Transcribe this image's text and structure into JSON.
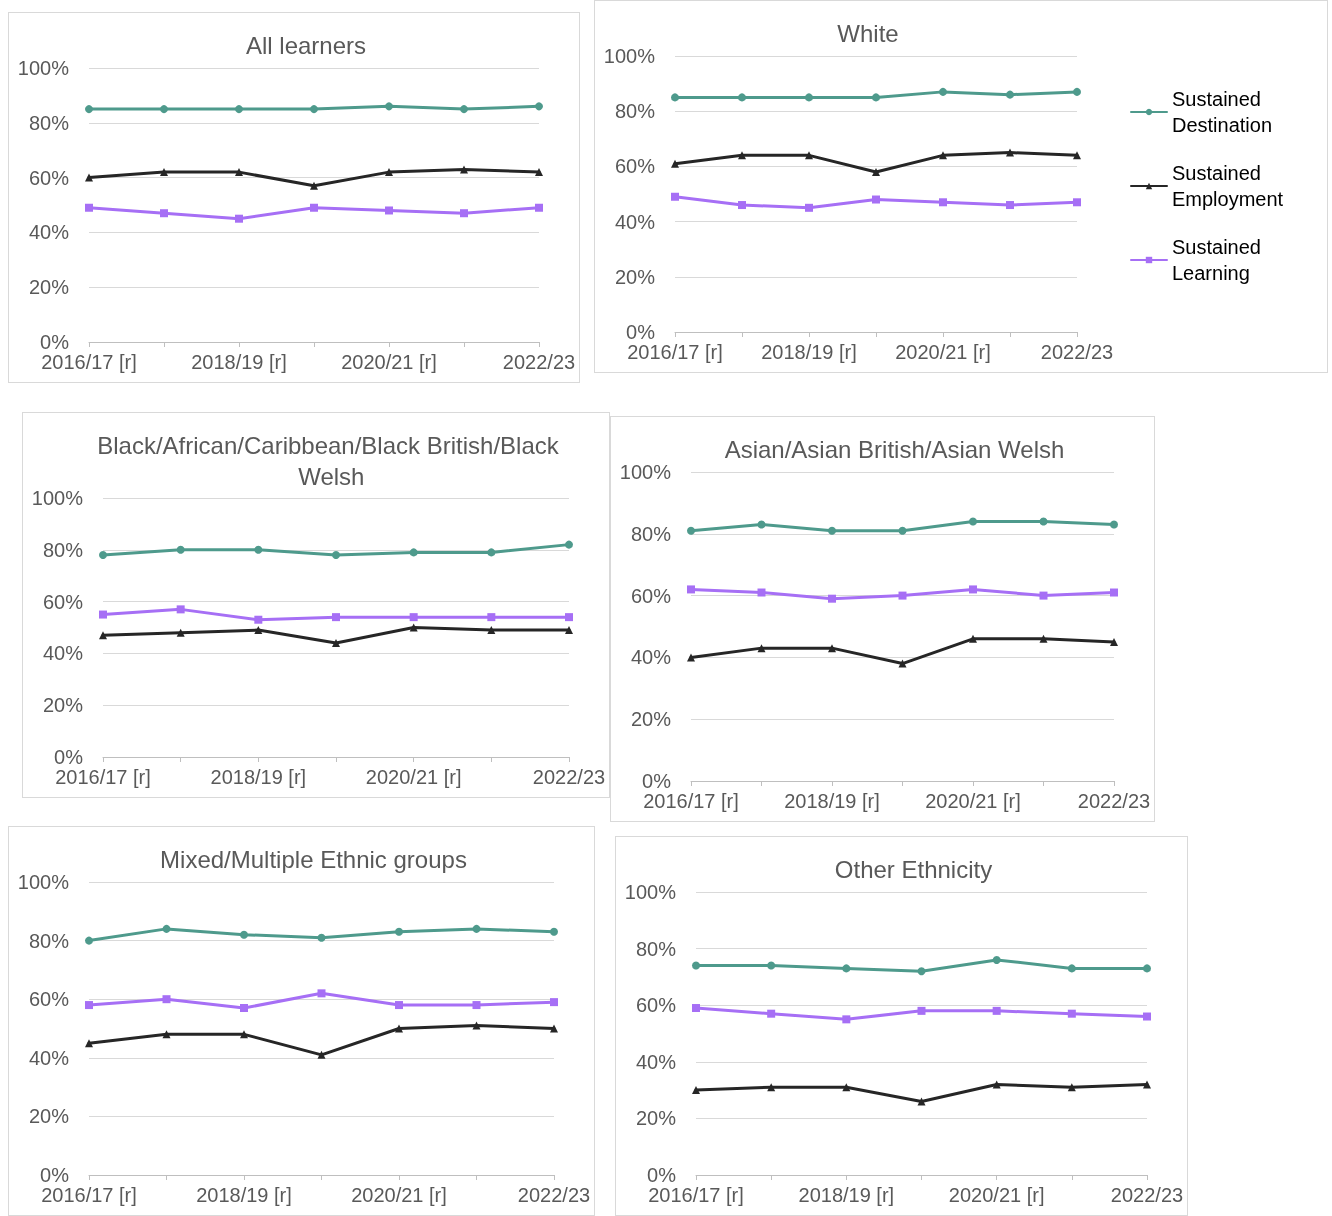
{
  "chart_data": [
    {
      "type": "line",
      "title": "All learners",
      "categories": [
        "2016/17 [r]",
        null,
        "2018/19 [r]",
        null,
        "2020/21 [r]",
        null,
        "2022/23"
      ],
      "ylim": [
        0,
        100
      ],
      "yticks": [
        {
          "value": 0,
          "label": "0%"
        },
        {
          "value": 20,
          "label": "20%"
        },
        {
          "value": 40,
          "label": "40%"
        },
        {
          "value": 60,
          "label": "60%"
        },
        {
          "value": 80,
          "label": "80%"
        },
        {
          "value": 100,
          "label": "100%"
        }
      ],
      "grid": "y",
      "legend": false,
      "series": [
        {
          "color": "#4e9a8c",
          "marker": "circle",
          "values": [
            85,
            85,
            85,
            85,
            86,
            85,
            86
          ]
        },
        {
          "color": "#262626",
          "marker": "triangle",
          "values": [
            60,
            62,
            62,
            57,
            62,
            63,
            62
          ]
        },
        {
          "color": "#a66ff5",
          "marker": "square",
          "values": [
            49,
            47,
            45,
            49,
            48,
            47,
            49
          ]
        }
      ]
    },
    {
      "type": "line",
      "title": "White",
      "categories": [
        "2016/17 [r]",
        null,
        "2018/19 [r]",
        null,
        "2020/21 [r]",
        null,
        "2022/23"
      ],
      "ylim": [
        0,
        100
      ],
      "yticks": [
        {
          "value": 0,
          "label": "0%"
        },
        {
          "value": 20,
          "label": "20%"
        },
        {
          "value": 40,
          "label": "40%"
        },
        {
          "value": 60,
          "label": "60%"
        },
        {
          "value": 80,
          "label": "80%"
        },
        {
          "value": 100,
          "label": "100%"
        }
      ],
      "grid": "y",
      "legend": "right",
      "series": [
        {
          "name": "Sustained Destination",
          "color": "#4e9a8c",
          "marker": "circle",
          "values": [
            85,
            85,
            85,
            85,
            87,
            86,
            87
          ]
        },
        {
          "name": "Sustained Employment",
          "color": "#262626",
          "marker": "triangle",
          "values": [
            61,
            64,
            64,
            58,
            64,
            65,
            64
          ]
        },
        {
          "name": "Sustained Learning",
          "color": "#a66ff5",
          "marker": "square",
          "values": [
            49,
            46,
            45,
            48,
            47,
            46,
            47
          ]
        }
      ]
    },
    {
      "type": "line",
      "title": "Black/African/Caribbean/Black British/Black Welsh",
      "categories": [
        "2016/17 [r]",
        null,
        "2018/19 [r]",
        null,
        "2020/21 [r]",
        null,
        "2022/23"
      ],
      "ylim": [
        0,
        100
      ],
      "yticks": [
        {
          "value": 0,
          "label": "0%"
        },
        {
          "value": 20,
          "label": "20%"
        },
        {
          "value": 40,
          "label": "40%"
        },
        {
          "value": 60,
          "label": "60%"
        },
        {
          "value": 80,
          "label": "80%"
        },
        {
          "value": 100,
          "label": "100%"
        }
      ],
      "grid": "y",
      "legend": false,
      "series": [
        {
          "color": "#4e9a8c",
          "marker": "circle",
          "values": [
            78,
            80,
            80,
            78,
            79,
            79,
            82
          ]
        },
        {
          "color": "#262626",
          "marker": "triangle",
          "values": [
            47,
            48,
            49,
            44,
            50,
            49,
            49
          ]
        },
        {
          "color": "#a66ff5",
          "marker": "square",
          "values": [
            55,
            57,
            53,
            54,
            54,
            54,
            54
          ]
        }
      ]
    },
    {
      "type": "line",
      "title": "Asian/Asian British/Asian Welsh",
      "categories": [
        "2016/17 [r]",
        null,
        "2018/19 [r]",
        null,
        "2020/21 [r]",
        null,
        "2022/23"
      ],
      "ylim": [
        0,
        100
      ],
      "yticks": [
        {
          "value": 0,
          "label": "0%"
        },
        {
          "value": 20,
          "label": "20%"
        },
        {
          "value": 40,
          "label": "40%"
        },
        {
          "value": 60,
          "label": "60%"
        },
        {
          "value": 80,
          "label": "80%"
        },
        {
          "value": 100,
          "label": "100%"
        }
      ],
      "grid": "y",
      "legend": false,
      "series": [
        {
          "color": "#4e9a8c",
          "marker": "circle",
          "values": [
            81,
            83,
            81,
            81,
            84,
            84,
            83
          ]
        },
        {
          "color": "#262626",
          "marker": "triangle",
          "values": [
            40,
            43,
            43,
            38,
            46,
            46,
            45
          ]
        },
        {
          "color": "#a66ff5",
          "marker": "square",
          "values": [
            62,
            61,
            59,
            60,
            62,
            60,
            61
          ]
        }
      ]
    },
    {
      "type": "line",
      "title": "Mixed/Multiple Ethnic groups",
      "categories": [
        "2016/17 [r]",
        null,
        "2018/19 [r]",
        null,
        "2020/21 [r]",
        null,
        "2022/23"
      ],
      "ylim": [
        0,
        100
      ],
      "yticks": [
        {
          "value": 0,
          "label": "0%"
        },
        {
          "value": 20,
          "label": "20%"
        },
        {
          "value": 40,
          "label": "40%"
        },
        {
          "value": 60,
          "label": "60%"
        },
        {
          "value": 80,
          "label": "80%"
        },
        {
          "value": 100,
          "label": "100%"
        }
      ],
      "grid": "y",
      "legend": false,
      "series": [
        {
          "color": "#4e9a8c",
          "marker": "circle",
          "values": [
            80,
            84,
            82,
            81,
            83,
            84,
            83
          ]
        },
        {
          "color": "#262626",
          "marker": "triangle",
          "values": [
            45,
            48,
            48,
            41,
            50,
            51,
            50
          ]
        },
        {
          "color": "#a66ff5",
          "marker": "square",
          "values": [
            58,
            60,
            57,
            62,
            58,
            58,
            59
          ]
        }
      ]
    },
    {
      "type": "line",
      "title": "Other Ethnicity",
      "categories": [
        "2016/17 [r]",
        null,
        "2018/19 [r]",
        null,
        "2020/21 [r]",
        null,
        "2022/23"
      ],
      "ylim": [
        0,
        100
      ],
      "yticks": [
        {
          "value": 0,
          "label": "0%"
        },
        {
          "value": 20,
          "label": "20%"
        },
        {
          "value": 40,
          "label": "40%"
        },
        {
          "value": 60,
          "label": "60%"
        },
        {
          "value": 80,
          "label": "80%"
        },
        {
          "value": 100,
          "label": "100%"
        }
      ],
      "grid": "y",
      "legend": false,
      "series": [
        {
          "color": "#4e9a8c",
          "marker": "circle",
          "values": [
            74,
            74,
            73,
            72,
            76,
            73,
            73
          ]
        },
        {
          "color": "#262626",
          "marker": "triangle",
          "values": [
            30,
            31,
            31,
            26,
            32,
            31,
            32
          ]
        },
        {
          "color": "#a66ff5",
          "marker": "square",
          "values": [
            59,
            57,
            55,
            58,
            58,
            57,
            56
          ]
        }
      ]
    }
  ]
}
